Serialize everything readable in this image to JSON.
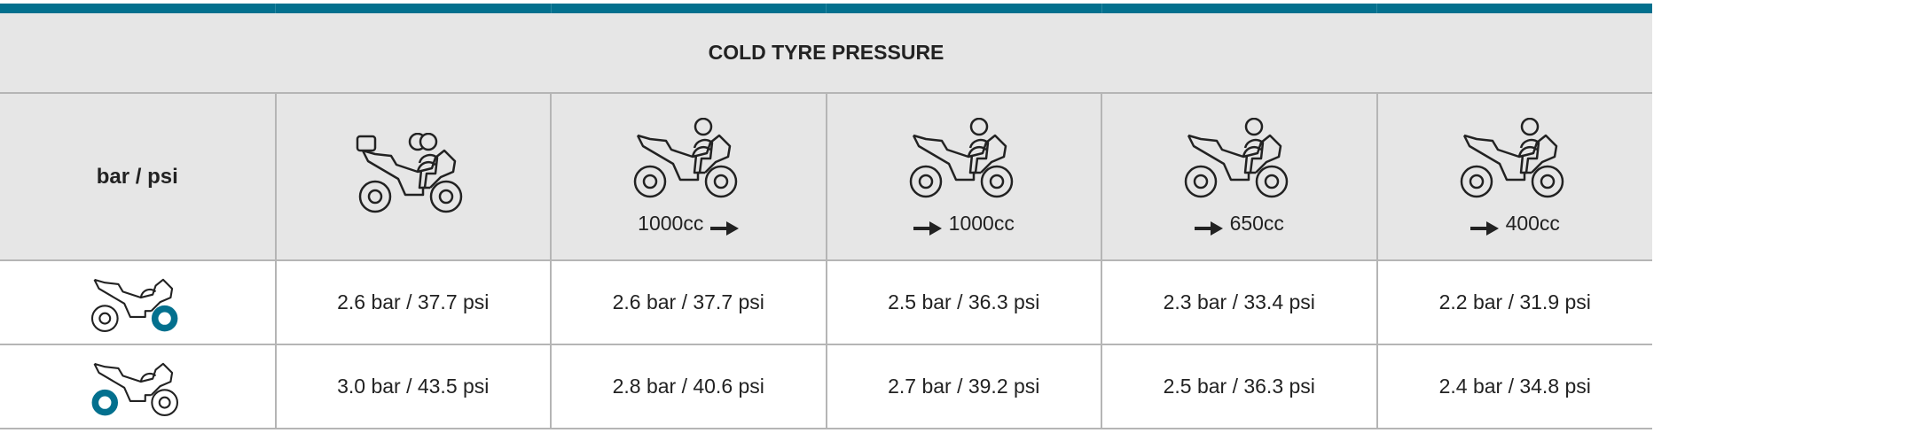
{
  "title": "COLD TYRE PRESSURE",
  "unit_label": "bar / psi",
  "accent_color": "#03708e",
  "columns": [
    {
      "icon": "motorcycle-two-riders-luggage-icon",
      "cc": "",
      "arrow": "none"
    },
    {
      "icon": "motorcycle-rider-icon",
      "cc": "1000cc",
      "arrow": "after"
    },
    {
      "icon": "motorcycle-rider-icon",
      "cc": "1000cc",
      "arrow": "before"
    },
    {
      "icon": "motorcycle-rider-icon",
      "cc": "650cc",
      "arrow": "before"
    },
    {
      "icon": "motorcycle-rider-icon",
      "cc": "400cc",
      "arrow": "before"
    }
  ],
  "rows": [
    {
      "icon": "motorcycle-rear-tyre-icon",
      "values": [
        "2.6 bar / 37.7 psi",
        "2.6 bar / 37.7 psi",
        "2.5 bar / 36.3 psi",
        "2.3 bar / 33.4 psi",
        "2.2 bar / 31.9 psi"
      ]
    },
    {
      "icon": "motorcycle-front-tyre-icon",
      "values": [
        "3.0 bar / 43.5 psi",
        "2.8 bar / 40.6 psi",
        "2.7 bar / 39.2 psi",
        "2.5 bar / 36.3 psi",
        "2.4 bar / 34.8 psi"
      ]
    }
  ]
}
